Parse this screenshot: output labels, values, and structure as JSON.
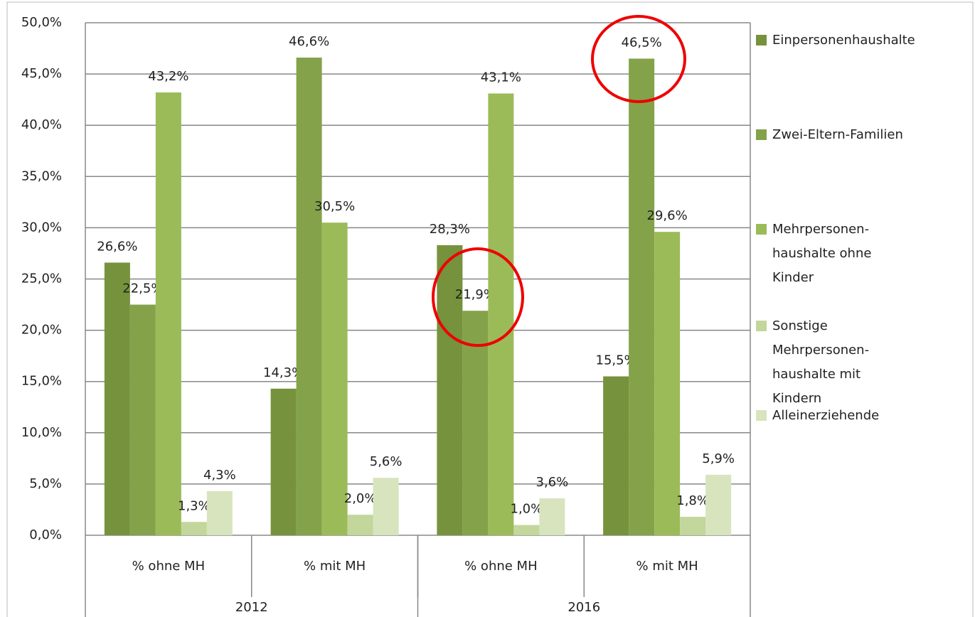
{
  "chart_data": {
    "type": "bar",
    "categories": [
      "% ohne MH",
      "% mit MH",
      "% ohne MH",
      "% mit MH"
    ],
    "category_groups": [
      "2012",
      "2016"
    ],
    "series": [
      {
        "name": "Einpersonenhaushalte",
        "color": "#76923c",
        "values": [
          26.6,
          14.3,
          28.3,
          15.5
        ],
        "value_labels": [
          "26,6%",
          "14,3%",
          "28,3%",
          "15,5%"
        ]
      },
      {
        "name": "Zwei-Eltern-Familien",
        "color": "#84a24a",
        "values": [
          22.5,
          46.6,
          21.9,
          46.5
        ],
        "value_labels": [
          "22,5%",
          "46,6%",
          "21,9%",
          "46,5%"
        ]
      },
      {
        "name": "Mehrpersonen-haushalte ohne Kinder",
        "color": "#9bbb59",
        "values": [
          43.2,
          30.5,
          43.1,
          29.6
        ],
        "value_labels": [
          "43,2%",
          "30,5%",
          "43,1%",
          "29,6%"
        ]
      },
      {
        "name": "Sonstige Mehrpersonen-haushalte mit Kindern",
        "color": "#c3d69b",
        "values": [
          1.3,
          2.0,
          1.0,
          1.8
        ],
        "value_labels": [
          "1,3%",
          "2,0%",
          "1,0%",
          "1,8%"
        ]
      },
      {
        "name": "Alleinerziehende",
        "color": "#d7e4bd",
        "values": [
          4.3,
          5.6,
          3.6,
          5.9
        ],
        "value_labels": [
          "4,3%",
          "5,6%",
          "3,6%",
          "5,9%"
        ]
      }
    ],
    "ylim": [
      0,
      50
    ],
    "yticks": [
      {
        "value": 0,
        "label": "0,0%"
      },
      {
        "value": 5,
        "label": "5,0%"
      },
      {
        "value": 10,
        "label": "10,0%"
      },
      {
        "value": 15,
        "label": "15,0%"
      },
      {
        "value": 20,
        "label": "20,0%"
      },
      {
        "value": 25,
        "label": "25,0%"
      },
      {
        "value": 30,
        "label": "30,0%"
      },
      {
        "value": 35,
        "label": "35,0%"
      },
      {
        "value": 40,
        "label": "40,0%"
      },
      {
        "value": 45,
        "label": "45,0%"
      },
      {
        "value": 50,
        "label": "50,0%"
      }
    ],
    "grid": true,
    "legend": "right"
  }
}
